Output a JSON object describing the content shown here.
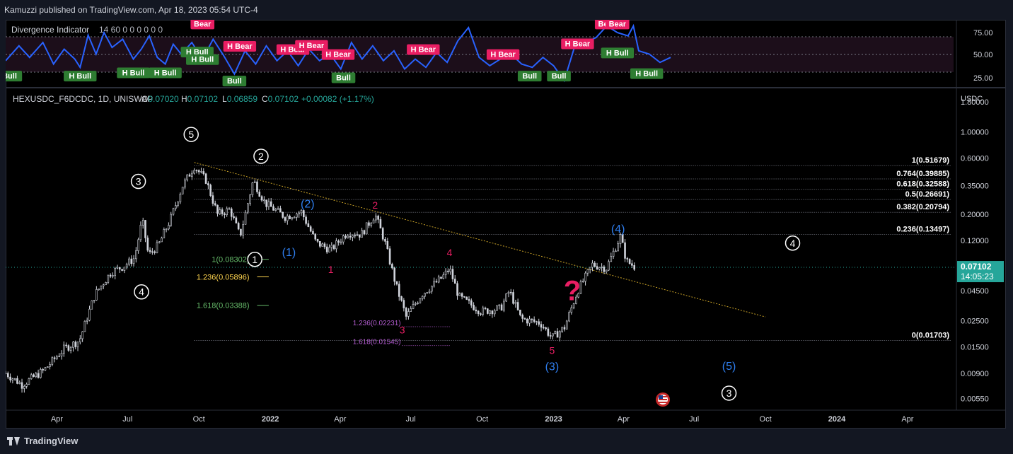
{
  "header": {
    "published": "Kamuzzi published on TradingView.com, Apr 18, 2023 05:54 UTC-4"
  },
  "footer": {
    "brand": "TradingView"
  },
  "indicator": {
    "name": "Divergence Indicator",
    "params": "14 60 0 0 0 0 0 0",
    "scale_labels": [
      "75.00",
      "50.00",
      "25.00"
    ],
    "signals": [
      {
        "text": "H Bull",
        "t": 0,
        "v": 25,
        "kind": "bull"
      },
      {
        "text": "H Bull",
        "t": 28,
        "v": 25,
        "kind": "bull"
      },
      {
        "text": "H Bull",
        "t": 48,
        "v": 29,
        "kind": "bull"
      },
      {
        "text": "H Bull",
        "t": 60,
        "v": 29,
        "kind": "bull"
      },
      {
        "text": "Bear",
        "t": 74,
        "v": 88,
        "kind": "bear"
      },
      {
        "text": "H Bull",
        "t": 72,
        "v": 54,
        "kind": "bull"
      },
      {
        "text": "H Bull",
        "t": 74,
        "v": 45,
        "kind": "bull"
      },
      {
        "text": "H Bear",
        "t": 88,
        "v": 61,
        "kind": "bear"
      },
      {
        "text": "Bull",
        "t": 86,
        "v": 19,
        "kind": "bull"
      },
      {
        "text": "H Bear",
        "t": 108,
        "v": 57,
        "kind": "bear"
      },
      {
        "text": "H Bear",
        "t": 115,
        "v": 62,
        "kind": "bear"
      },
      {
        "text": "H Bear",
        "t": 125,
        "v": 51,
        "kind": "bear"
      },
      {
        "text": "Bull",
        "t": 127,
        "v": 23,
        "kind": "bull"
      },
      {
        "text": "H Bear",
        "t": 157,
        "v": 57,
        "kind": "bear"
      },
      {
        "text": "H Bear",
        "t": 187,
        "v": 51,
        "kind": "bear"
      },
      {
        "text": "Bull",
        "t": 197,
        "v": 25,
        "kind": "bull"
      },
      {
        "text": "Bull",
        "t": 208,
        "v": 25,
        "kind": "bull"
      },
      {
        "text": "H Bear",
        "t": 215,
        "v": 64,
        "kind": "bear"
      },
      {
        "text": "Bear",
        "t": 226,
        "v": 88,
        "kind": "bear"
      },
      {
        "text": "Bear",
        "t": 230,
        "v": 88,
        "kind": "bear"
      },
      {
        "text": "H Bull",
        "t": 230,
        "v": 53,
        "kind": "bull"
      },
      {
        "text": "H Bull",
        "t": 241,
        "v": 28,
        "kind": "bull"
      }
    ]
  },
  "ohlc": {
    "symbol": "HEXUSDC_F6DCDC, 1D, UNISWAP",
    "o_label": "O",
    "o": "0.07020",
    "h_label": "H",
    "h": "0.07102",
    "l_label": "L",
    "l": "0.06859",
    "c_label": "C",
    "c": "0.07102",
    "change": "+0.00082 (+1.17%)"
  },
  "price_axis": {
    "currency": "USDC",
    "ticks": [
      "1.80000",
      "1.00000",
      "0.60000",
      "0.35000",
      "0.20000",
      "0.12000",
      "0.07000",
      "0.04500",
      "0.02500",
      "0.01500",
      "0.00900",
      "0.00550"
    ],
    "last_price": "0.07102",
    "countdown": "14:05:23"
  },
  "time_axis": {
    "labels": [
      "Apr",
      "Jul",
      "Oct",
      "2022",
      "Apr",
      "Jul",
      "Oct",
      "2023",
      "Apr",
      "Jul",
      "Oct",
      "2024",
      "Apr"
    ]
  },
  "colors": {
    "wave_white": "#ffffff",
    "wave_blue": "#2f7ff0",
    "wave_red": "#e91e63",
    "fib_main": "#ffffff",
    "fib_green": "#66bb6a",
    "fib_yellow": "#ffd54f",
    "fib_purple": "#b15bce",
    "trendline": "#c9a227",
    "indicator_line": "#2962ff",
    "bull_label": "#2e7d32",
    "bear_label": "#e91e63",
    "last_price_bg": "#26a69a",
    "candle_up": "#d1d4dc"
  },
  "chart_data": {
    "type": "candlestick",
    "title": "HEXUSDC_F6DCDC, 1D, UNISWAP",
    "y_scale": "log",
    "ylim": [
      0.0045,
      2.3
    ],
    "x_start_date": "2021-01-25",
    "x_range_days": [
      0,
      1225
    ],
    "price_path": [
      {
        "date": "2021-01-25",
        "price": 0.009
      },
      {
        "date": "2021-02-15",
        "price": 0.0072
      },
      {
        "date": "2021-03-15",
        "price": 0.0095
      },
      {
        "date": "2021-04-10",
        "price": 0.0145
      },
      {
        "date": "2021-04-30",
        "price": 0.017
      },
      {
        "date": "2021-05-20",
        "price": 0.042
      },
      {
        "date": "2021-06-10",
        "price": 0.065
      },
      {
        "date": "2021-06-25",
        "price": 0.072
      },
      {
        "date": "2021-07-10",
        "price": 0.085
      },
      {
        "date": "2021-07-20",
        "price": 0.18
      },
      {
        "date": "2021-07-28",
        "price": 0.09
      },
      {
        "date": "2021-08-10",
        "price": 0.11
      },
      {
        "date": "2021-08-25",
        "price": 0.18
      },
      {
        "date": "2021-09-10",
        "price": 0.35
      },
      {
        "date": "2021-09-25",
        "price": 0.51
      },
      {
        "date": "2021-10-10",
        "price": 0.39
      },
      {
        "date": "2021-10-25",
        "price": 0.2
      },
      {
        "date": "2021-11-10",
        "price": 0.22
      },
      {
        "date": "2021-11-23",
        "price": 0.13
      },
      {
        "date": "2021-12-10",
        "price": 0.39
      },
      {
        "date": "2021-12-25",
        "price": 0.25
      },
      {
        "date": "2022-01-20",
        "price": 0.19
      },
      {
        "date": "2022-02-10",
        "price": 0.21
      },
      {
        "date": "2022-03-01",
        "price": 0.115
      },
      {
        "date": "2022-03-20",
        "price": 0.1
      },
      {
        "date": "2022-04-10",
        "price": 0.14
      },
      {
        "date": "2022-04-28",
        "price": 0.135
      },
      {
        "date": "2022-05-16",
        "price": 0.2
      },
      {
        "date": "2022-05-28",
        "price": 0.12
      },
      {
        "date": "2022-06-12",
        "price": 0.05
      },
      {
        "date": "2022-06-25",
        "price": 0.027
      },
      {
        "date": "2022-07-15",
        "price": 0.042
      },
      {
        "date": "2022-08-10",
        "price": 0.058
      },
      {
        "date": "2022-08-20",
        "price": 0.069
      },
      {
        "date": "2022-09-01",
        "price": 0.04
      },
      {
        "date": "2022-09-30",
        "price": 0.03
      },
      {
        "date": "2022-10-25",
        "price": 0.032
      },
      {
        "date": "2022-11-05",
        "price": 0.045
      },
      {
        "date": "2022-11-20",
        "price": 0.026
      },
      {
        "date": "2022-12-15",
        "price": 0.024
      },
      {
        "date": "2022-12-30",
        "price": 0.018
      },
      {
        "date": "2023-01-15",
        "price": 0.022
      },
      {
        "date": "2023-02-01",
        "price": 0.045
      },
      {
        "date": "2023-02-20",
        "price": 0.075
      },
      {
        "date": "2023-03-10",
        "price": 0.07
      },
      {
        "date": "2023-03-28",
        "price": 0.13
      },
      {
        "date": "2023-04-05",
        "price": 0.08
      },
      {
        "date": "2023-04-17",
        "price": 0.071
      }
    ],
    "indicator_path": [
      {
        "t": 0,
        "v": 44
      },
      {
        "t": 5,
        "v": 62
      },
      {
        "t": 9,
        "v": 48
      },
      {
        "t": 14,
        "v": 66
      },
      {
        "t": 18,
        "v": 40
      },
      {
        "t": 22,
        "v": 58
      },
      {
        "t": 26,
        "v": 46
      },
      {
        "t": 28,
        "v": 36
      },
      {
        "t": 31,
        "v": 75
      },
      {
        "t": 34,
        "v": 52
      },
      {
        "t": 37,
        "v": 78
      },
      {
        "t": 40,
        "v": 60
      },
      {
        "t": 44,
        "v": 70
      },
      {
        "t": 48,
        "v": 46
      },
      {
        "t": 51,
        "v": 58
      },
      {
        "t": 54,
        "v": 74
      },
      {
        "t": 57,
        "v": 48
      },
      {
        "t": 60,
        "v": 40
      },
      {
        "t": 63,
        "v": 64
      },
      {
        "t": 66,
        "v": 52
      },
      {
        "t": 70,
        "v": 66
      },
      {
        "t": 74,
        "v": 46
      },
      {
        "t": 78,
        "v": 70
      },
      {
        "t": 82,
        "v": 50
      },
      {
        "t": 86,
        "v": 28
      },
      {
        "t": 90,
        "v": 56
      },
      {
        "t": 94,
        "v": 40
      },
      {
        "t": 98,
        "v": 62
      },
      {
        "t": 102,
        "v": 44
      },
      {
        "t": 106,
        "v": 56
      },
      {
        "t": 110,
        "v": 38
      },
      {
        "t": 114,
        "v": 58
      },
      {
        "t": 118,
        "v": 44
      },
      {
        "t": 122,
        "v": 52
      },
      {
        "t": 126,
        "v": 34
      },
      {
        "t": 130,
        "v": 66
      },
      {
        "t": 134,
        "v": 46
      },
      {
        "t": 138,
        "v": 62
      },
      {
        "t": 142,
        "v": 44
      },
      {
        "t": 146,
        "v": 56
      },
      {
        "t": 150,
        "v": 34
      },
      {
        "t": 154,
        "v": 46
      },
      {
        "t": 158,
        "v": 36
      },
      {
        "t": 162,
        "v": 54
      },
      {
        "t": 166,
        "v": 42
      },
      {
        "t": 170,
        "v": 68
      },
      {
        "t": 174,
        "v": 84
      },
      {
        "t": 178,
        "v": 48
      },
      {
        "t": 182,
        "v": 38
      },
      {
        "t": 186,
        "v": 46
      },
      {
        "t": 190,
        "v": 52
      },
      {
        "t": 194,
        "v": 40
      },
      {
        "t": 198,
        "v": 36
      },
      {
        "t": 202,
        "v": 48
      },
      {
        "t": 206,
        "v": 38
      },
      {
        "t": 210,
        "v": 20
      },
      {
        "t": 214,
        "v": 62
      },
      {
        "t": 218,
        "v": 66
      },
      {
        "t": 222,
        "v": 72
      },
      {
        "t": 226,
        "v": 86
      },
      {
        "t": 230,
        "v": 78
      },
      {
        "t": 234,
        "v": 74
      },
      {
        "t": 236,
        "v": 86
      },
      {
        "t": 238,
        "v": 56
      },
      {
        "t": 242,
        "v": 52
      },
      {
        "t": 246,
        "v": 42
      },
      {
        "t": 250,
        "v": 48
      }
    ],
    "trendline": [
      {
        "date": "2021-09-25",
        "price": 0.55
      },
      {
        "date": "2023-10-01",
        "price": 0.027
      }
    ],
    "fib_main": [
      {
        "label": "1(0.51679)",
        "price": 0.51679
      },
      {
        "label": "0.764(0.39885)",
        "price": 0.39885
      },
      {
        "label": "0.618(0.32588)",
        "price": 0.32588
      },
      {
        "label": "0.5(0.26691)",
        "price": 0.26691
      },
      {
        "label": "0.382(0.20794)",
        "price": 0.20794
      },
      {
        "label": "0.236(0.13497)",
        "price": 0.13497
      },
      {
        "label": "0(0.01703)",
        "price": 0.01703
      }
    ],
    "fib_left": [
      {
        "label": "1(0.08302)",
        "price": 0.08302,
        "color": "green"
      },
      {
        "label": "1.236(0.05896)",
        "price": 0.05896,
        "color": "yellow"
      },
      {
        "label": "1.618(0.03388)",
        "price": 0.03388,
        "color": "green"
      }
    ],
    "fib_purple": [
      {
        "label": "1.236(0.02231)",
        "price": 0.02231
      },
      {
        "label": "1.618(0.01545)",
        "price": 0.01545
      }
    ],
    "wave_labels": [
      {
        "text": "5",
        "style": "circle-white",
        "date": "2021-09-21",
        "price": 0.95
      },
      {
        "text": "3",
        "style": "circle-white",
        "date": "2021-07-15",
        "price": 0.38
      },
      {
        "text": "4",
        "style": "circle-white",
        "date": "2021-07-19",
        "price": 0.044
      },
      {
        "text": "2",
        "style": "circle-white",
        "date": "2021-12-20",
        "price": 0.62
      },
      {
        "text": "1",
        "style": "circle-white",
        "date": "2021-12-12",
        "price": 0.083
      },
      {
        "text": "(2)",
        "style": "blue",
        "date": "2022-02-18",
        "price": 0.245
      },
      {
        "text": "(1)",
        "style": "blue",
        "date": "2022-01-25",
        "price": 0.095
      },
      {
        "text": "1",
        "style": "red",
        "date": "2022-03-20",
        "price": 0.068
      },
      {
        "text": "2",
        "style": "red",
        "date": "2022-05-16",
        "price": 0.24
      },
      {
        "text": "3",
        "style": "red",
        "date": "2022-06-20",
        "price": 0.021
      },
      {
        "text": "4",
        "style": "red",
        "date": "2022-08-20",
        "price": 0.095
      },
      {
        "text": "5",
        "style": "red",
        "date": "2022-12-30",
        "price": 0.014
      },
      {
        "text": "(3)",
        "style": "blue",
        "date": "2022-12-30",
        "price": 0.0102
      },
      {
        "text": "(4)",
        "style": "blue",
        "date": "2023-03-25",
        "price": 0.15
      },
      {
        "text": "4",
        "style": "circle-white",
        "date": "2023-11-05",
        "price": 0.114
      },
      {
        "text": "(5)",
        "style": "blue",
        "date": "2023-08-15",
        "price": 0.0103
      },
      {
        "text": "3",
        "style": "circle-white",
        "date": "2023-08-15",
        "price": 0.0061
      },
      {
        "text": "?",
        "style": "big-red",
        "date": "2023-01-25",
        "price": 0.0455
      }
    ]
  }
}
